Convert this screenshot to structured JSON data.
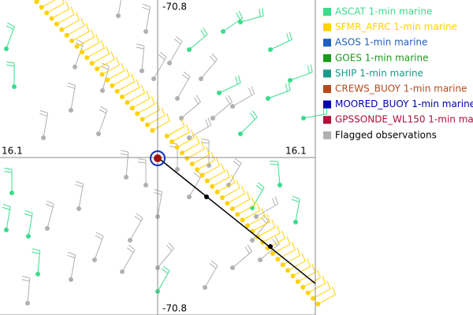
{
  "map": {
    "labels": {
      "lon_top": "-70.8",
      "lon_bottom": "-70.8",
      "lat_left": "16.1",
      "lat_right": "16.1"
    }
  },
  "legend": {
    "items": [
      {
        "name": "ASCAT 1-min marine",
        "color": "#3cdc8c"
      },
      {
        "name": "SFMR_AFRC 1-min marine",
        "color": "#ffd200"
      },
      {
        "name": "ASOS 1-min marine",
        "color": "#1f5fbf"
      },
      {
        "name": "GOES 1-min marine",
        "color": "#1a9a1a"
      },
      {
        "name": "SHIP 1-min marine",
        "color": "#1a9a8a"
      },
      {
        "name": "CREWS_BUOY 1-min marine",
        "color": "#b84a1a"
      },
      {
        "name": "MOORED_BUOY 1-min marine",
        "color": "#0000b0"
      },
      {
        "name": "GPSSONDE_WL150 1-min mar",
        "color": "#b0103a"
      },
      {
        "name": "Flagged observations",
        "color": "#b0b0b0",
        "label_color": "#000000"
      }
    ]
  }
}
